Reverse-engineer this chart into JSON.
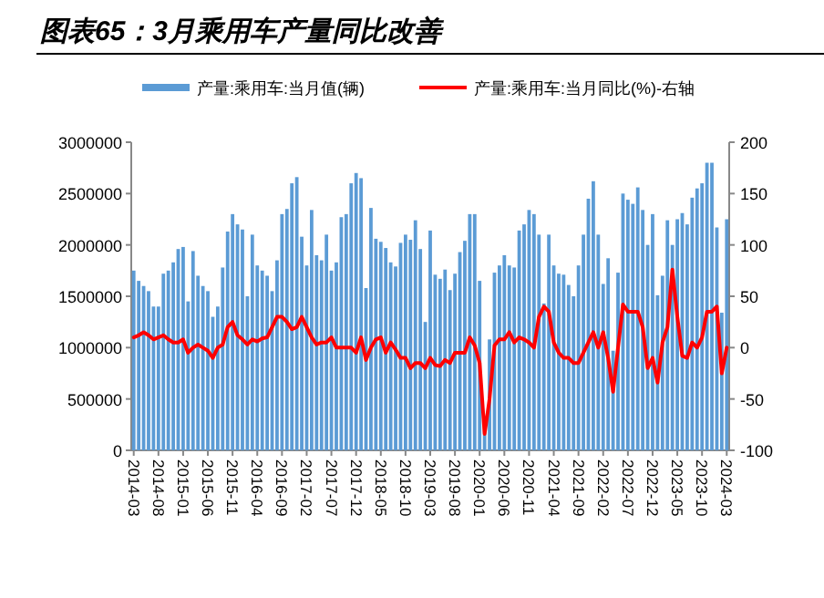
{
  "chart_data": {
    "type": "bar",
    "title": "图表65：3月乘用车产量同比改善",
    "categories": [
      "2014-03",
      null,
      null,
      null,
      null,
      "2014-08",
      null,
      null,
      null,
      null,
      "2015-01",
      null,
      null,
      null,
      null,
      "2015-06",
      null,
      null,
      null,
      null,
      "2015-11",
      null,
      null,
      null,
      null,
      "2016-04",
      null,
      null,
      null,
      null,
      "2016-09",
      null,
      null,
      null,
      null,
      "2017-02",
      null,
      null,
      null,
      null,
      "2017-07",
      null,
      null,
      null,
      null,
      "2017-12",
      null,
      null,
      null,
      null,
      "2018-05",
      null,
      null,
      null,
      null,
      "2018-10",
      null,
      null,
      null,
      null,
      "2019-03",
      null,
      null,
      null,
      null,
      "2019-08",
      null,
      null,
      null,
      null,
      "2020-01",
      null,
      null,
      null,
      null,
      "2020-06",
      null,
      null,
      null,
      null,
      "2020-11",
      null,
      null,
      null,
      null,
      "2021-04",
      null,
      null,
      null,
      null,
      "2021-09",
      null,
      null,
      null,
      null,
      "2022-02",
      null,
      null,
      null,
      null,
      "2022-07",
      null,
      null,
      null,
      null,
      "2022-12",
      null,
      null,
      null,
      null,
      "2023-05",
      null,
      null,
      null,
      null,
      "2023-10",
      null,
      null,
      null,
      null,
      "2024-03"
    ],
    "series": [
      {
        "name": "产量:乘用车:当月值(辆)",
        "color": "#5b9bd5",
        "values": [
          1750000,
          1650000,
          1600000,
          1550000,
          1400000,
          1400000,
          1720000,
          1750000,
          1830000,
          1960000,
          1980000,
          1450000,
          1940000,
          1700000,
          1600000,
          1550000,
          1300000,
          1400000,
          1780000,
          2130000,
          2300000,
          2200000,
          2150000,
          1500000,
          2100000,
          1800000,
          1750000,
          1700000,
          1550000,
          1850000,
          2300000,
          2350000,
          2600000,
          2660000,
          2080000,
          1800000,
          2340000,
          1900000,
          1850000,
          2100000,
          1750000,
          1830000,
          2270000,
          2300000,
          2600000,
          2700000,
          2650000,
          1580000,
          2360000,
          2060000,
          2030000,
          1970000,
          1830000,
          1790000,
          2020000,
          2100000,
          2050000,
          2240000,
          1960000,
          1250000,
          2140000,
          1710000,
          1670000,
          1760000,
          1560000,
          1720000,
          1930000,
          2040000,
          2300000,
          2300000,
          1650000,
          230000,
          1080000,
          1730000,
          1800000,
          1900000,
          1800000,
          1780000,
          2140000,
          2200000,
          2340000,
          2300000,
          2100000,
          1430000,
          2100000,
          1800000,
          1720000,
          1710000,
          1610000,
          1500000,
          1800000,
          2100000,
          2450000,
          2620000,
          2100000,
          1620000,
          1870000,
          970000,
          1730000,
          2500000,
          2440000,
          2400000,
          2560000,
          2340000,
          2000000,
          2300000,
          1510000,
          1700000,
          2240000,
          2000000,
          2250000,
          2310000,
          2200000,
          2460000,
          2550000,
          2600000,
          2800000,
          2800000,
          2170000,
          1340000,
          2250000
        ]
      },
      {
        "name": "产量:乘用车:当月同比(%)-右轴",
        "type": "line",
        "axis": "y2",
        "color": "#ff0000",
        "values": [
          10,
          12,
          15,
          12,
          8,
          10,
          12,
          8,
          5,
          5,
          8,
          -5,
          0,
          3,
          0,
          -3,
          -10,
          0,
          3,
          20,
          25,
          12,
          8,
          3,
          8,
          6,
          9,
          10,
          20,
          30,
          30,
          25,
          18,
          20,
          30,
          20,
          10,
          3,
          5,
          5,
          10,
          0,
          0,
          0,
          0,
          -5,
          10,
          -12,
          0,
          8,
          10,
          -5,
          5,
          -2,
          -10,
          -10,
          -20,
          -15,
          -15,
          -20,
          -10,
          -17,
          -18,
          -12,
          -15,
          -5,
          -5,
          -5,
          10,
          2,
          -15,
          -84,
          -50,
          2,
          8,
          8,
          15,
          5,
          10,
          8,
          5,
          0,
          30,
          40,
          35,
          5,
          -5,
          -10,
          -10,
          -15,
          -15,
          -5,
          5,
          15,
          0,
          15,
          -10,
          -43,
          0,
          42,
          35,
          35,
          35,
          20,
          -20,
          -10,
          -34,
          5,
          20,
          76,
          30,
          -8,
          -10,
          5,
          0,
          10,
          35,
          35,
          40,
          -25,
          0
        ]
      }
    ],
    "ylim": [
      0,
      3000000
    ],
    "yticks": [
      0,
      500000,
      1000000,
      1500000,
      2000000,
      2500000,
      3000000
    ],
    "y2lim": [
      -100,
      200
    ],
    "y2ticks": [
      -100,
      -50,
      0,
      50,
      100,
      150,
      200
    ],
    "legend": "top",
    "grid": false
  }
}
